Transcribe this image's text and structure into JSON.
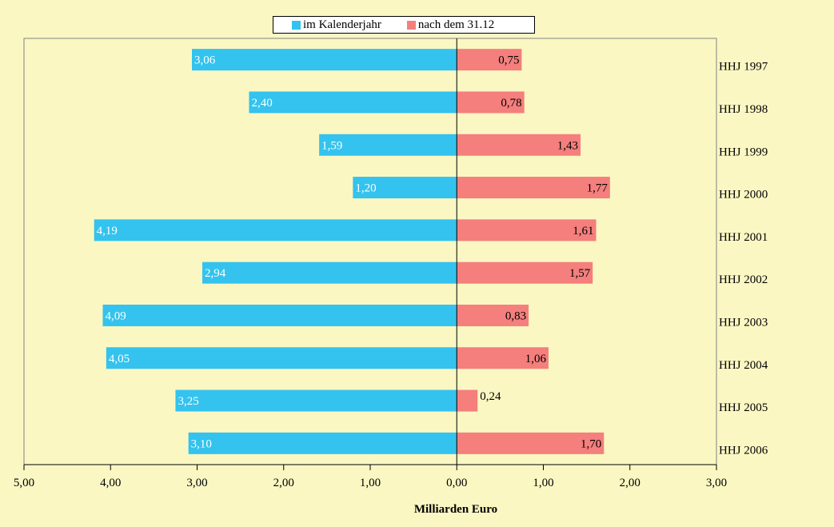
{
  "chart_data": {
    "type": "bar",
    "orientation": "horizontal-diverging",
    "categories": [
      "HHJ 1997",
      "HHJ 1998",
      "HHJ 1999",
      "HHJ 2000",
      "HHJ 2001",
      "HHJ 2002",
      "HHJ 2003",
      "HHJ 2004",
      "HHJ 2005",
      "HHJ 2006"
    ],
    "series": [
      {
        "name": "im Kalenderjahr",
        "color": "#33c3ee",
        "side": "left",
        "values": [
          3.06,
          2.4,
          1.59,
          1.2,
          4.19,
          2.94,
          4.09,
          4.05,
          3.25,
          3.1
        ],
        "labels": [
          "3,06",
          "2,40",
          "1,59",
          "1,20",
          "4,19",
          "2,94",
          "4,09",
          "4,05",
          "3,25",
          "3,10"
        ]
      },
      {
        "name": "nach dem 31.12",
        "color": "#f47f7d",
        "side": "right",
        "values": [
          0.75,
          0.78,
          1.43,
          1.77,
          1.61,
          1.57,
          0.83,
          1.06,
          0.24,
          1.7
        ],
        "labels": [
          "0,75",
          "0,78",
          "1,43",
          "1,77",
          "1,61",
          "1,57",
          "0,83",
          "1,06",
          "0,24",
          "1,70"
        ]
      }
    ],
    "xlim": [
      -5,
      3
    ],
    "x_ticks": [
      -5,
      -4,
      -3,
      -2,
      -1,
      0,
      1,
      2,
      3
    ],
    "x_tick_labels": [
      "5,00",
      "4,00",
      "3,00",
      "2,00",
      "1,00",
      "0,00",
      "1,00",
      "2,00",
      "3,00"
    ],
    "xlabel": "Milliarden Euro",
    "ylabel": "",
    "title": "",
    "legend_position": "top-center",
    "grid": false,
    "plot_background": "#fbf7c3"
  }
}
